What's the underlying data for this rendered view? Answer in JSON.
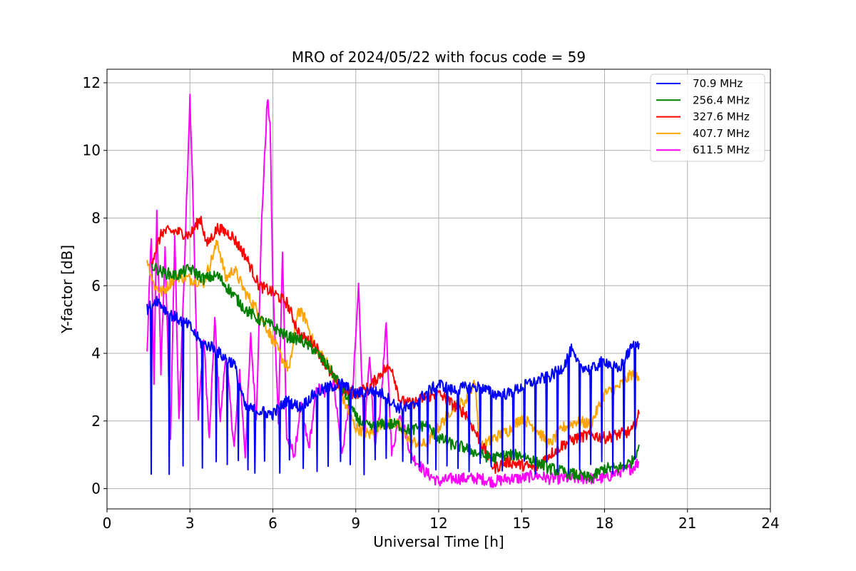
{
  "chart_data": {
    "type": "line",
    "title": "MRO of 2024/05/22 with focus code = 59",
    "xlabel": "Universal Time [h]",
    "ylabel": "Y-factor [dB]",
    "xlim": [
      0,
      24
    ],
    "ylim": [
      -0.6,
      12.4
    ],
    "xticks": [
      0,
      3,
      6,
      9,
      12,
      15,
      18,
      21,
      24
    ],
    "yticks": [
      0,
      2,
      4,
      6,
      8,
      10,
      12
    ],
    "grid": true,
    "legend_position": "top-right",
    "series": [
      {
        "name": " 70.9 MHz",
        "color": "#0000ff",
        "x": [
          1.45,
          1.8,
          2.2,
          2.6,
          3.0,
          3.4,
          3.8,
          4.2,
          4.6,
          5.0,
          5.5,
          6.0,
          6.5,
          7.0,
          7.5,
          8.0,
          8.5,
          9.0,
          9.5,
          10.0,
          10.5,
          11.0,
          11.5,
          12.0,
          12.5,
          13.0,
          13.5,
          14.0,
          14.5,
          15.0,
          15.5,
          16.0,
          16.5,
          16.8,
          17.0,
          17.5,
          18.0,
          18.5,
          19.0,
          19.25
        ],
        "y": [
          5.3,
          5.6,
          5.2,
          5.0,
          4.8,
          4.3,
          4.2,
          3.9,
          3.7,
          2.4,
          2.3,
          2.2,
          2.6,
          2.4,
          2.8,
          3.0,
          3.1,
          2.8,
          2.9,
          2.8,
          2.4,
          2.4,
          2.8,
          3.1,
          2.9,
          3.0,
          3.0,
          2.8,
          2.8,
          3.0,
          3.2,
          3.3,
          3.6,
          4.1,
          3.7,
          3.5,
          3.8,
          3.5,
          4.2,
          4.3
        ],
        "dips": [
          1.6,
          2.25,
          2.75,
          3.45,
          3.95,
          4.35,
          4.75,
          5.1,
          5.35,
          5.7,
          6.25,
          6.6,
          7.1,
          7.6,
          8.0,
          8.45,
          8.8,
          9.3,
          9.7,
          10.1,
          10.7,
          11.0,
          11.3,
          11.6,
          11.9,
          12.3,
          12.7,
          13.1,
          13.5,
          13.9,
          14.3,
          14.7,
          15.1,
          15.5,
          15.9,
          16.3,
          16.7,
          17.1,
          17.5,
          17.9,
          18.3,
          18.7,
          19.1
        ],
        "dip_to": 0.4
      },
      {
        "name": "256.4 MHz",
        "color": "#008000",
        "x": [
          1.6,
          2.0,
          2.5,
          3.0,
          3.5,
          4.0,
          4.5,
          5.0,
          5.5,
          6.0,
          6.5,
          7.0,
          7.5,
          8.0,
          8.5,
          9.0,
          9.5,
          10.0,
          10.5,
          11.0,
          11.5,
          12.0,
          12.5,
          13.0,
          13.5,
          14.0,
          14.5,
          15.0,
          15.5,
          16.0,
          16.5,
          17.0,
          17.5,
          18.0,
          18.5,
          19.0,
          19.25
        ],
        "y": [
          6.6,
          6.4,
          6.3,
          6.5,
          6.2,
          6.3,
          5.8,
          5.3,
          5.0,
          4.8,
          4.5,
          4.4,
          4.1,
          3.6,
          3.0,
          2.1,
          1.8,
          1.9,
          1.9,
          1.7,
          1.9,
          1.5,
          1.3,
          1.2,
          1.0,
          0.9,
          1.0,
          1.0,
          0.8,
          0.6,
          0.5,
          0.4,
          0.3,
          0.6,
          0.6,
          0.8,
          1.3
        ]
      },
      {
        "name": "327.6 MHz",
        "color": "#ff0000",
        "x": [
          1.6,
          2.0,
          2.5,
          3.0,
          3.4,
          3.6,
          4.0,
          4.5,
          5.0,
          5.5,
          6.0,
          6.5,
          6.9,
          7.0,
          7.5,
          8.0,
          8.5,
          9.0,
          9.5,
          10.0,
          10.3,
          10.6,
          11.0,
          11.5,
          12.0,
          12.5,
          13.0,
          13.5,
          14.0,
          14.5,
          15.0,
          15.5,
          16.0,
          16.5,
          17.0,
          17.5,
          18.0,
          18.5,
          19.0,
          19.25
        ],
        "y": [
          6.7,
          7.6,
          7.6,
          7.5,
          8.0,
          7.2,
          7.7,
          7.5,
          6.9,
          6.0,
          5.8,
          5.5,
          4.7,
          4.5,
          4.3,
          3.5,
          2.9,
          2.8,
          3.0,
          3.5,
          3.6,
          2.6,
          2.5,
          2.7,
          2.8,
          2.5,
          2.2,
          1.4,
          0.6,
          0.8,
          0.7,
          0.6,
          1.0,
          1.3,
          1.5,
          1.6,
          1.5,
          1.6,
          1.7,
          2.2
        ]
      },
      {
        "name": "407.7 MHz",
        "color": "#ffa500",
        "x": [
          1.45,
          1.7,
          2.0,
          2.5,
          3.0,
          3.5,
          4.0,
          4.3,
          4.6,
          5.0,
          5.5,
          6.0,
          6.3,
          6.6,
          6.9,
          7.2,
          7.5,
          8.0,
          8.5,
          9.0,
          9.5,
          10.0,
          10.5,
          11.0,
          11.5,
          12.0,
          12.5,
          13.0,
          13.3,
          13.5,
          14.0,
          14.5,
          15.0,
          15.5,
          16.0,
          16.5,
          17.0,
          17.5,
          18.0,
          18.5,
          19.0,
          19.25
        ],
        "y": [
          6.8,
          6.0,
          5.8,
          6.3,
          6.2,
          6.1,
          7.3,
          6.2,
          6.5,
          5.8,
          5.2,
          4.4,
          3.9,
          3.5,
          5.3,
          5.0,
          4.2,
          3.7,
          2.7,
          1.8,
          1.6,
          2.0,
          1.9,
          1.4,
          1.3,
          1.8,
          2.4,
          2.6,
          3.2,
          1.2,
          1.5,
          1.7,
          2.1,
          1.8,
          1.3,
          1.8,
          2.0,
          1.9,
          2.8,
          3.0,
          3.4,
          3.2
        ]
      },
      {
        "name": "611.5 MHz",
        "color": "#ff00ff",
        "x": [
          1.45,
          1.6,
          1.7,
          1.8,
          1.95,
          2.1,
          2.3,
          2.45,
          2.6,
          2.8,
          3.0,
          3.1,
          3.3,
          3.5,
          3.7,
          3.9,
          4.1,
          4.3,
          4.6,
          4.8,
          5.0,
          5.2,
          5.4,
          5.6,
          5.8,
          5.9,
          6.0,
          6.2,
          6.35,
          6.5,
          6.8,
          7.0,
          7.3,
          7.6,
          7.9,
          8.2,
          8.5,
          8.7,
          8.9,
          9.1,
          9.3,
          9.5,
          9.7,
          9.9,
          10.1,
          10.3,
          10.6,
          11.0,
          11.5,
          12.0,
          12.5,
          13.0,
          13.5,
          14.0,
          14.5,
          15.0,
          15.5,
          16.0,
          16.5,
          17.0,
          17.5,
          18.0,
          18.5,
          19.0,
          19.25
        ],
        "y": [
          4.0,
          7.5,
          3.0,
          8.2,
          3.5,
          7.0,
          1.5,
          7.5,
          2.0,
          6.5,
          11.6,
          9.0,
          2.2,
          4.5,
          1.4,
          5.0,
          2.0,
          4.0,
          1.2,
          3.5,
          1.0,
          4.5,
          2.0,
          8.0,
          11.5,
          10.8,
          6.0,
          2.0,
          7.0,
          1.5,
          1.0,
          2.5,
          1.2,
          3.0,
          2.8,
          3.2,
          1.0,
          2.2,
          3.0,
          6.0,
          1.5,
          3.8,
          1.2,
          2.5,
          4.8,
          1.0,
          2.3,
          1.0,
          0.5,
          0.2,
          0.3,
          0.3,
          0.3,
          0.2,
          0.3,
          0.3,
          0.4,
          0.3,
          0.3,
          0.3,
          0.3,
          0.3,
          0.5,
          0.6,
          0.8
        ]
      }
    ]
  }
}
